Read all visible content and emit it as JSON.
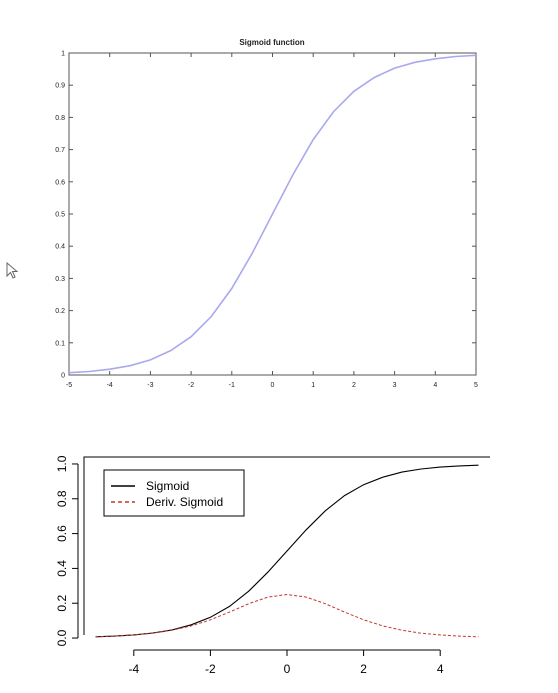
{
  "chart_data": [
    {
      "type": "line",
      "title": "Sigmoid function",
      "xlabel": "",
      "ylabel": "",
      "xlim": [
        -5,
        5
      ],
      "ylim": [
        0,
        1
      ],
      "x_ticks": [
        "-5",
        "-4",
        "-3",
        "-2",
        "-1",
        "0",
        "1",
        "2",
        "3",
        "4",
        "5"
      ],
      "y_ticks": [
        "0",
        "0.1",
        "0.2",
        "0.3",
        "0.4",
        "0.5",
        "0.6",
        "0.7",
        "0.8",
        "0.9",
        "1"
      ],
      "grid": false,
      "series": [
        {
          "color": "#a9a9ee",
          "x": [
            -5,
            -4.5,
            -4,
            -3.5,
            -3,
            -2.5,
            -2,
            -1.5,
            -1,
            -0.5,
            0,
            0.5,
            1,
            1.5,
            2,
            2.5,
            3,
            3.5,
            4,
            4.5,
            5
          ],
          "values": [
            0.007,
            0.011,
            0.018,
            0.029,
            0.047,
            0.076,
            0.119,
            0.182,
            0.269,
            0.378,
            0.5,
            0.622,
            0.731,
            0.818,
            0.881,
            0.924,
            0.953,
            0.971,
            0.982,
            0.989,
            0.993
          ]
        }
      ]
    },
    {
      "type": "line",
      "title": "",
      "xlabel": "",
      "ylabel": "",
      "xlim": [
        -5.3,
        5.3
      ],
      "ylim": [
        -0.04,
        1.04
      ],
      "x_ticks": [
        "-4",
        "-2",
        "0",
        "2",
        "4"
      ],
      "y_ticks": [
        "0.0",
        "0.2",
        "0.4",
        "0.6",
        "0.8",
        "1.0"
      ],
      "grid": false,
      "legend": {
        "position": "top-left"
      },
      "series": [
        {
          "name": "Sigmoid",
          "color": "#000000",
          "dash": "solid",
          "x": [
            -5,
            -4.5,
            -4,
            -3.5,
            -3,
            -2.5,
            -2,
            -1.5,
            -1,
            -0.5,
            0,
            0.5,
            1,
            1.5,
            2,
            2.5,
            3,
            3.5,
            4,
            4.5,
            5
          ],
          "values": [
            0.007,
            0.011,
            0.018,
            0.029,
            0.047,
            0.076,
            0.119,
            0.182,
            0.269,
            0.378,
            0.5,
            0.622,
            0.731,
            0.818,
            0.881,
            0.924,
            0.953,
            0.971,
            0.982,
            0.989,
            0.993
          ]
        },
        {
          "name": "Deriv. Sigmoid",
          "color": "#c0392b",
          "dash": "dashed",
          "x": [
            -5,
            -4.5,
            -4,
            -3.5,
            -3,
            -2.5,
            -2,
            -1.5,
            -1,
            -0.5,
            0,
            0.5,
            1,
            1.5,
            2,
            2.5,
            3,
            3.5,
            4,
            4.5,
            5
          ],
          "values": [
            0.007,
            0.011,
            0.018,
            0.028,
            0.045,
            0.07,
            0.105,
            0.149,
            0.197,
            0.235,
            0.25,
            0.235,
            0.197,
            0.149,
            0.105,
            0.07,
            0.045,
            0.028,
            0.018,
            0.011,
            0.007
          ]
        }
      ]
    }
  ],
  "icons": {
    "cursor": "mouse-pointer-icon"
  }
}
